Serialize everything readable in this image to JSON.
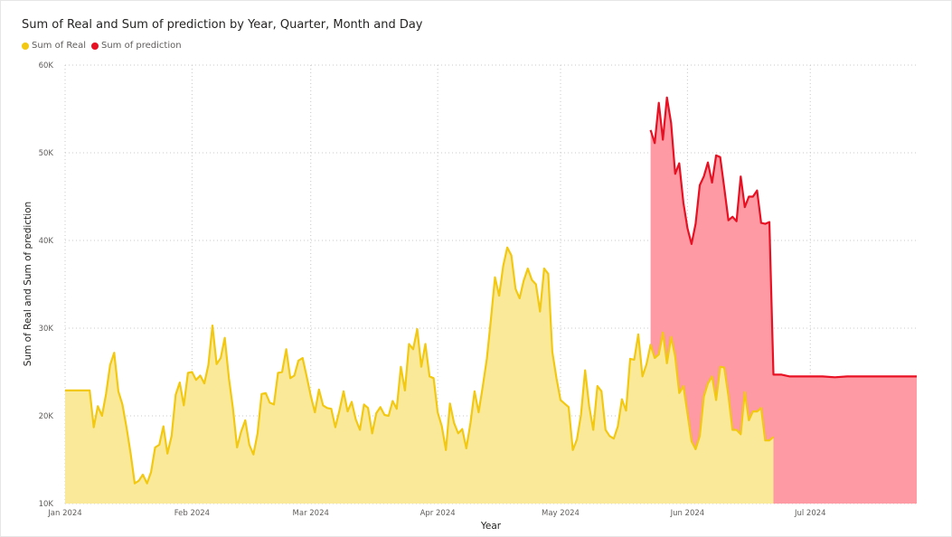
{
  "colors": {
    "real": "#F2C811",
    "real_fill": "#FBE99A",
    "prediction": "#E81123",
    "prediction_fill": "#FD9AA3",
    "grid": "#c8c8c8"
  },
  "legend": {
    "items": [
      {
        "label": "Sum of Real",
        "color": "#F2C811"
      },
      {
        "label": "Sum of prediction",
        "color": "#E81123"
      }
    ]
  },
  "chart_data": {
    "type": "area",
    "title": "Sum of Real and Sum of prediction by Year, Quarter, Month and Day",
    "xlabel": "Year",
    "ylabel": "Sum of Real and Sum of prediction",
    "ylim": [
      10000,
      60000
    ],
    "yticks": [
      {
        "value": 10000,
        "label": "10K"
      },
      {
        "value": 20000,
        "label": "20K"
      },
      {
        "value": 30000,
        "label": "30K"
      },
      {
        "value": 40000,
        "label": "40K"
      },
      {
        "value": 50000,
        "label": "50K"
      },
      {
        "value": 60000,
        "label": "60K"
      }
    ],
    "xlim": [
      "2024-01-01",
      "2024-07-27"
    ],
    "xticks": [
      {
        "date": "2024-01-01",
        "label": "Jan 2024"
      },
      {
        "date": "2024-02-01",
        "label": "Feb 2024"
      },
      {
        "date": "2024-03-01",
        "label": "Mar 2024"
      },
      {
        "date": "2024-04-01",
        "label": "Apr 2024"
      },
      {
        "date": "2024-05-01",
        "label": "May 2024"
      },
      {
        "date": "2024-06-01",
        "label": "Jun 2024"
      },
      {
        "date": "2024-07-01",
        "label": "Jul 2024"
      }
    ],
    "grid": true,
    "legend_position": "top-left",
    "series": [
      {
        "name": "Sum of Real",
        "color": "#F2C811",
        "points": [
          [
            "2024-01-01",
            22900
          ],
          [
            "2024-01-07",
            22900
          ],
          [
            "2024-01-08",
            18700
          ],
          [
            "2024-01-09",
            21100
          ],
          [
            "2024-01-10",
            20000
          ],
          [
            "2024-01-11",
            22500
          ],
          [
            "2024-01-12",
            25800
          ],
          [
            "2024-01-13",
            27200
          ],
          [
            "2024-01-14",
            22800
          ],
          [
            "2024-01-15",
            21300
          ],
          [
            "2024-01-16",
            18700
          ],
          [
            "2024-01-17",
            15700
          ],
          [
            "2024-01-18",
            12300
          ],
          [
            "2024-01-19",
            12600
          ],
          [
            "2024-01-20",
            13300
          ],
          [
            "2024-01-21",
            12300
          ],
          [
            "2024-01-22",
            13600
          ],
          [
            "2024-01-23",
            16400
          ],
          [
            "2024-01-24",
            16700
          ],
          [
            "2024-01-25",
            18800
          ],
          [
            "2024-01-26",
            15700
          ],
          [
            "2024-01-27",
            17700
          ],
          [
            "2024-01-28",
            22400
          ],
          [
            "2024-01-29",
            23800
          ],
          [
            "2024-01-30",
            21200
          ],
          [
            "2024-01-31",
            24900
          ],
          [
            "2024-02-01",
            25000
          ],
          [
            "2024-02-02",
            24100
          ],
          [
            "2024-02-03",
            24600
          ],
          [
            "2024-02-04",
            23700
          ],
          [
            "2024-02-05",
            25800
          ],
          [
            "2024-02-06",
            30300
          ],
          [
            "2024-02-07",
            25900
          ],
          [
            "2024-02-08",
            26600
          ],
          [
            "2024-02-09",
            28900
          ],
          [
            "2024-02-10",
            24300
          ],
          [
            "2024-02-11",
            20800
          ],
          [
            "2024-02-12",
            16400
          ],
          [
            "2024-02-13",
            18200
          ],
          [
            "2024-02-14",
            19500
          ],
          [
            "2024-02-15",
            16700
          ],
          [
            "2024-02-16",
            15600
          ],
          [
            "2024-02-17",
            18000
          ],
          [
            "2024-02-18",
            22500
          ],
          [
            "2024-02-19",
            22600
          ],
          [
            "2024-02-20",
            21500
          ],
          [
            "2024-02-21",
            21300
          ],
          [
            "2024-02-22",
            24900
          ],
          [
            "2024-02-23",
            25000
          ],
          [
            "2024-02-24",
            27600
          ],
          [
            "2024-02-25",
            24300
          ],
          [
            "2024-02-26",
            24600
          ],
          [
            "2024-02-27",
            26300
          ],
          [
            "2024-02-28",
            26600
          ],
          [
            "2024-02-29",
            24500
          ],
          [
            "2024-03-01",
            22300
          ],
          [
            "2024-03-02",
            20400
          ],
          [
            "2024-03-03",
            23000
          ],
          [
            "2024-03-04",
            21200
          ],
          [
            "2024-03-05",
            20900
          ],
          [
            "2024-03-06",
            20800
          ],
          [
            "2024-03-07",
            18700
          ],
          [
            "2024-03-08",
            20600
          ],
          [
            "2024-03-09",
            22800
          ],
          [
            "2024-03-10",
            20500
          ],
          [
            "2024-03-11",
            21600
          ],
          [
            "2024-03-12",
            19600
          ],
          [
            "2024-03-13",
            18400
          ],
          [
            "2024-03-14",
            21300
          ],
          [
            "2024-03-15",
            20900
          ],
          [
            "2024-03-16",
            18000
          ],
          [
            "2024-03-17",
            20300
          ],
          [
            "2024-03-18",
            21000
          ],
          [
            "2024-03-19",
            20100
          ],
          [
            "2024-03-20",
            20000
          ],
          [
            "2024-03-21",
            21700
          ],
          [
            "2024-03-22",
            20800
          ],
          [
            "2024-03-23",
            25600
          ],
          [
            "2024-03-24",
            22900
          ],
          [
            "2024-03-25",
            28200
          ],
          [
            "2024-03-26",
            27600
          ],
          [
            "2024-03-27",
            29900
          ],
          [
            "2024-03-28",
            25600
          ],
          [
            "2024-03-29",
            28200
          ],
          [
            "2024-03-30",
            24500
          ],
          [
            "2024-03-31",
            24300
          ],
          [
            "2024-04-01",
            20400
          ],
          [
            "2024-04-02",
            18800
          ],
          [
            "2024-04-03",
            16100
          ],
          [
            "2024-04-04",
            21400
          ],
          [
            "2024-04-05",
            19200
          ],
          [
            "2024-04-06",
            18000
          ],
          [
            "2024-04-07",
            18500
          ],
          [
            "2024-04-08",
            16300
          ],
          [
            "2024-04-09",
            19200
          ],
          [
            "2024-04-10",
            22800
          ],
          [
            "2024-04-11",
            20400
          ],
          [
            "2024-04-12",
            23300
          ],
          [
            "2024-04-13",
            26500
          ],
          [
            "2024-04-14",
            31000
          ],
          [
            "2024-04-15",
            35800
          ],
          [
            "2024-04-16",
            33700
          ],
          [
            "2024-04-17",
            37100
          ],
          [
            "2024-04-18",
            39200
          ],
          [
            "2024-04-19",
            38300
          ],
          [
            "2024-04-20",
            34500
          ],
          [
            "2024-04-21",
            33400
          ],
          [
            "2024-04-22",
            35400
          ],
          [
            "2024-04-23",
            36800
          ],
          [
            "2024-04-24",
            35500
          ],
          [
            "2024-04-25",
            35000
          ],
          [
            "2024-04-26",
            31900
          ],
          [
            "2024-04-27",
            36800
          ],
          [
            "2024-04-28",
            36200
          ],
          [
            "2024-04-29",
            27300
          ],
          [
            "2024-04-30",
            24300
          ],
          [
            "2024-05-01",
            21800
          ],
          [
            "2024-05-02",
            21400
          ],
          [
            "2024-05-03",
            21000
          ],
          [
            "2024-05-04",
            16100
          ],
          [
            "2024-05-05",
            17300
          ],
          [
            "2024-05-06",
            20100
          ],
          [
            "2024-05-07",
            25200
          ],
          [
            "2024-05-08",
            21100
          ],
          [
            "2024-05-09",
            18400
          ],
          [
            "2024-05-10",
            23400
          ],
          [
            "2024-05-11",
            22800
          ],
          [
            "2024-05-12",
            18400
          ],
          [
            "2024-05-13",
            17700
          ],
          [
            "2024-05-14",
            17400
          ],
          [
            "2024-05-15",
            18800
          ],
          [
            "2024-05-16",
            21900
          ],
          [
            "2024-05-17",
            20600
          ],
          [
            "2024-05-18",
            26500
          ],
          [
            "2024-05-19",
            26400
          ],
          [
            "2024-05-20",
            29300
          ],
          [
            "2024-05-21",
            24500
          ],
          [
            "2024-05-22",
            25900
          ],
          [
            "2024-05-23",
            28100
          ],
          [
            "2024-05-24",
            26600
          ],
          [
            "2024-05-25",
            27000
          ],
          [
            "2024-05-26",
            29500
          ],
          [
            "2024-05-27",
            26000
          ],
          [
            "2024-05-28",
            29000
          ],
          [
            "2024-05-29",
            26800
          ],
          [
            "2024-05-30",
            22600
          ],
          [
            "2024-05-31",
            23400
          ],
          [
            "2024-06-01",
            20300
          ],
          [
            "2024-06-02",
            17100
          ],
          [
            "2024-06-03",
            16200
          ],
          [
            "2024-06-04",
            17700
          ],
          [
            "2024-06-05",
            22200
          ],
          [
            "2024-06-06",
            23700
          ],
          [
            "2024-06-07",
            24500
          ],
          [
            "2024-06-08",
            21800
          ],
          [
            "2024-06-09",
            25600
          ],
          [
            "2024-06-10",
            25500
          ],
          [
            "2024-06-11",
            22300
          ],
          [
            "2024-06-12",
            18400
          ],
          [
            "2024-06-13",
            18400
          ],
          [
            "2024-06-14",
            17900
          ],
          [
            "2024-06-15",
            22700
          ],
          [
            "2024-06-16",
            19500
          ],
          [
            "2024-06-17",
            20500
          ],
          [
            "2024-06-18",
            20500
          ],
          [
            "2024-06-19",
            20900
          ],
          [
            "2024-06-20",
            17200
          ],
          [
            "2024-06-21",
            17200
          ],
          [
            "2024-06-22",
            17600
          ]
        ]
      },
      {
        "name": "Sum of prediction",
        "color": "#E81123",
        "points": [
          [
            "2024-05-23",
            52600
          ],
          [
            "2024-05-24",
            51100
          ],
          [
            "2024-05-25",
            55700
          ],
          [
            "2024-05-26",
            51500
          ],
          [
            "2024-05-27",
            56300
          ],
          [
            "2024-05-28",
            53400
          ],
          [
            "2024-05-29",
            47600
          ],
          [
            "2024-05-30",
            48800
          ],
          [
            "2024-05-31",
            44300
          ],
          [
            "2024-06-01",
            41400
          ],
          [
            "2024-06-02",
            39600
          ],
          [
            "2024-06-03",
            41900
          ],
          [
            "2024-06-04",
            46300
          ],
          [
            "2024-06-05",
            47300
          ],
          [
            "2024-06-06",
            48900
          ],
          [
            "2024-06-07",
            46600
          ],
          [
            "2024-06-08",
            49700
          ],
          [
            "2024-06-09",
            49500
          ],
          [
            "2024-06-10",
            46000
          ],
          [
            "2024-06-11",
            42300
          ],
          [
            "2024-06-12",
            42700
          ],
          [
            "2024-06-13",
            42200
          ],
          [
            "2024-06-14",
            47300
          ],
          [
            "2024-06-15",
            43800
          ],
          [
            "2024-06-16",
            45000
          ],
          [
            "2024-06-17",
            45000
          ],
          [
            "2024-06-18",
            45700
          ],
          [
            "2024-06-19",
            42000
          ],
          [
            "2024-06-20",
            41900
          ],
          [
            "2024-06-21",
            42100
          ],
          [
            "2024-06-22",
            24700
          ],
          [
            "2024-06-24",
            24700
          ],
          [
            "2024-06-26",
            24500
          ],
          [
            "2024-06-28",
            24500
          ],
          [
            "2024-07-01",
            24500
          ],
          [
            "2024-07-04",
            24500
          ],
          [
            "2024-07-07",
            24400
          ],
          [
            "2024-07-10",
            24500
          ],
          [
            "2024-07-15",
            24500
          ],
          [
            "2024-07-20",
            24500
          ],
          [
            "2024-07-27",
            24500
          ]
        ]
      }
    ]
  }
}
